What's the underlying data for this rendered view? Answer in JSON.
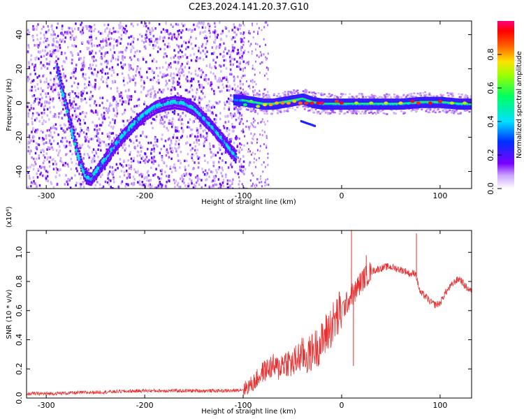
{
  "figure": {
    "title": "C2E3.2024.141.20.37.G10"
  },
  "chart_data": [
    {
      "type": "heatmap",
      "title": "C2E3.2024.141.20.37.G10",
      "xlabel": "Height of straight line (km)",
      "ylabel": "Frequency (Hz)",
      "xlim": [
        -320,
        132
      ],
      "ylim": [
        -50,
        48
      ],
      "x_ticks": [
        -300,
        -200,
        -100,
        0,
        100
      ],
      "y_ticks": [
        -40,
        -20,
        0,
        20,
        40
      ],
      "x_tick_labels": [
        "-300",
        "-200",
        "-100",
        "0",
        "100"
      ],
      "y_tick_labels": [
        "-40",
        "-20",
        "0",
        "20",
        "40"
      ],
      "colorbar": {
        "label": "Normalized spectral amplitude",
        "range": [
          0,
          1
        ],
        "ticks": [
          0.0,
          0.2,
          0.4,
          0.6,
          0.8
        ],
        "tick_labels": [
          "0.0",
          "0.2",
          "0.4",
          "0.6",
          "0.8"
        ]
      },
      "ridge_lower": {
        "x": [
          -290,
          -285,
          -280,
          -275,
          -270,
          -265,
          -260,
          -255,
          -250,
          -240,
          -230,
          -220,
          -210,
          -200,
          -190,
          -180,
          -170,
          -160,
          -150,
          -140,
          -130,
          -120,
          -112,
          -108
        ],
        "y": [
          22,
          10,
          -2,
          -14,
          -26,
          -36,
          -43,
          -44,
          -40,
          -32,
          -24,
          -17,
          -11,
          -6,
          -2,
          0,
          1,
          0,
          -3,
          -9,
          -15,
          -22,
          -28,
          -31
        ]
      },
      "ridge_center": {
        "x": [
          -235,
          -220,
          -200,
          -180,
          -160,
          -140,
          -120,
          -100,
          -90,
          -80,
          -70,
          -60,
          -50,
          -40,
          -30,
          -20,
          -10,
          0,
          20,
          40,
          60,
          80,
          100,
          120,
          132
        ],
        "y": [
          0,
          1,
          2,
          3,
          3,
          3,
          3,
          2,
          1,
          0,
          0,
          1,
          2,
          3,
          1,
          0,
          0,
          0,
          0,
          0,
          0,
          1,
          1,
          0,
          0
        ]
      },
      "peaks_center": {
        "x": [
          -98,
          -92,
          -85,
          -78,
          -72,
          -66,
          -60,
          -54,
          -48,
          -42,
          -36,
          -30,
          -24,
          -20,
          -5,
          0,
          15,
          30,
          45,
          60,
          72,
          78,
          90,
          100,
          112,
          125
        ],
        "y": [
          -1,
          1,
          -2,
          -1,
          -1,
          0,
          0,
          0,
          1,
          0,
          0,
          0,
          0,
          0,
          1,
          0,
          0,
          0,
          0,
          0,
          1,
          0,
          0,
          1,
          0,
          0
        ],
        "amplitude": [
          0.55,
          0.6,
          0.7,
          0.75,
          0.8,
          0.78,
          0.82,
          0.8,
          0.78,
          0.85,
          0.9,
          0.92,
          0.95,
          0.98,
          0.9,
          0.95,
          0.7,
          0.7,
          0.72,
          0.75,
          0.95,
          0.9,
          0.95,
          0.92,
          0.72,
          0.7
        ]
      }
    },
    {
      "type": "line",
      "xlabel": "Height of straight line (km)",
      "ylabel": "SNR (10 * v/v)",
      "y_multiplier": "(x10⁴)",
      "xlim": [
        -320,
        132
      ],
      "ylim": [
        0,
        1.15
      ],
      "x_ticks": [
        -300,
        -200,
        -100,
        0,
        100
      ],
      "y_ticks": [
        0.0,
        0.2,
        0.4,
        0.6,
        0.8,
        1.0
      ],
      "x_tick_labels": [
        "-300",
        "-200",
        "-100",
        "0",
        "100"
      ],
      "y_tick_labels": [
        "0.0",
        "0.2",
        "0.4",
        "0.6",
        "0.8",
        "1.0"
      ],
      "line_color": "#e83030",
      "series": [
        {
          "x": [
            -320,
            -300,
            -250,
            -200,
            -150,
            -110,
            -100,
            -95,
            -90,
            -85,
            -80,
            -75,
            -70,
            -65,
            -60,
            -55,
            -50,
            -45,
            -40,
            -35,
            -30,
            -25,
            -20,
            -15,
            -10,
            -5,
            0,
            5,
            8,
            10,
            12,
            15,
            20,
            25,
            30,
            35,
            40,
            45,
            50,
            55,
            60,
            65,
            70,
            75,
            77,
            80,
            85,
            90,
            95,
            100,
            105,
            110,
            115,
            120,
            125,
            132
          ],
          "y": [
            0.03,
            0.03,
            0.04,
            0.05,
            0.05,
            0.05,
            0.06,
            0.08,
            0.1,
            0.14,
            0.18,
            0.2,
            0.22,
            0.2,
            0.24,
            0.25,
            0.23,
            0.27,
            0.3,
            0.28,
            0.32,
            0.35,
            0.38,
            0.45,
            0.5,
            0.55,
            0.6,
            0.65,
            0.68,
            0.72,
            0.7,
            0.75,
            0.8,
            0.84,
            0.87,
            0.88,
            0.89,
            0.9,
            0.9,
            0.89,
            0.88,
            0.87,
            0.85,
            0.86,
            0.8,
            0.72,
            0.7,
            0.66,
            0.64,
            0.65,
            0.72,
            0.76,
            0.8,
            0.82,
            0.77,
            0.73
          ]
        }
      ],
      "spikes": [
        {
          "x": 10,
          "y": 1.15
        },
        {
          "x": 76,
          "y": 1.13
        },
        {
          "x": 12,
          "y": 0.22
        },
        {
          "x": 25,
          "y": 0.98
        }
      ]
    }
  ]
}
